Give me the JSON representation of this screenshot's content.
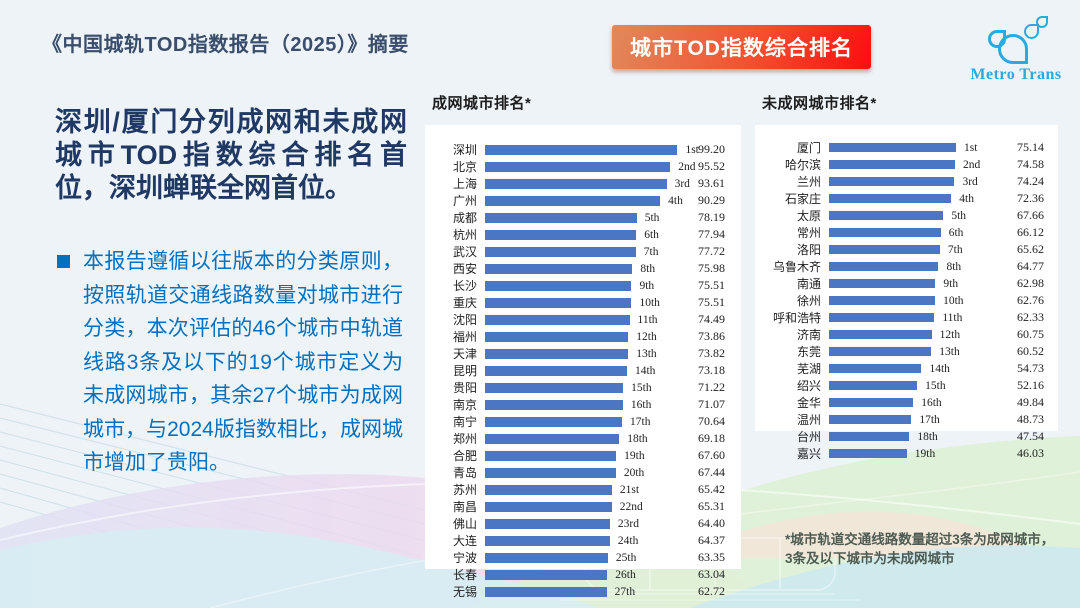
{
  "header": {
    "title": "《中国城轨TOD指数报告（2025）》摘要",
    "badge_label": "城市TOD指数综合排名",
    "logo_text": "Metro Trans"
  },
  "summary": {
    "headline": "深圳/厦门分列成网和未成网城市TOD指数综合排名首位，深圳蝉联全网首位。",
    "bullet_text": "本报告遵循以往版本的分类原则，按照轨道交通线路数量对城市进行分类，本次评估的46个城市中轨道线路3条及以下的19个城市定义为未成网城市，其余27个城市为成网城市，与2024版指数相比，成网城市增加了贵阳。"
  },
  "footnote": {
    "line1": "*城市轨道交通线路数量超过3条为成网城市，",
    "line2": "3条及以下城市为未成网城市"
  },
  "colors": {
    "bar": "#4a76c4",
    "headline": "#1f3864",
    "bullet_text": "#0070c0",
    "header_title": "#3a4d6b",
    "badge_gradient_start": "#e08a5c",
    "badge_gradient_end": "#fb0e0e",
    "logo": "#29abe2"
  },
  "chart_data": [
    {
      "type": "bar",
      "orientation": "horizontal",
      "title": "成网城市排名*",
      "xlabel": "",
      "ylabel": "",
      "xlim": [
        0,
        100
      ],
      "grid": false,
      "legend": null,
      "categories": [
        "深圳",
        "北京",
        "上海",
        "广州",
        "成都",
        "杭州",
        "武汉",
        "西安",
        "长沙",
        "重庆",
        "沈阳",
        "福州",
        "天津",
        "昆明",
        "贵阳",
        "南京",
        "南宁",
        "郑州",
        "合肥",
        "青岛",
        "苏州",
        "南昌",
        "佛山",
        "大连",
        "宁波",
        "长春",
        "无锡"
      ],
      "values": [
        99.2,
        95.52,
        93.61,
        90.29,
        78.19,
        77.94,
        77.72,
        75.98,
        75.51,
        75.51,
        74.49,
        73.86,
        73.82,
        73.18,
        71.22,
        71.07,
        70.64,
        69.18,
        67.6,
        67.44,
        65.42,
        65.31,
        64.4,
        64.37,
        63.35,
        63.04,
        62.72
      ],
      "value_labels": [
        "99.20",
        "95.52",
        "93.61",
        "90.29",
        "78.19",
        "77.94",
        "77.72",
        "75.98",
        "75.51",
        "75.51",
        "74.49",
        "73.86",
        "73.82",
        "73.18",
        "71.22",
        "71.07",
        "70.64",
        "69.18",
        "67.60",
        "67.44",
        "65.42",
        "65.31",
        "64.40",
        "64.37",
        "63.35",
        "63.04",
        "62.72"
      ],
      "rank_labels": [
        "1st",
        "2nd",
        "3rd",
        "4th",
        "5th",
        "6th",
        "7th",
        "8th",
        "9th",
        "10th",
        "11th",
        "12th",
        "13th",
        "14th",
        "15th",
        "16th",
        "17th",
        "18th",
        "19th",
        "20th",
        "21st",
        "22nd",
        "23rd",
        "24th",
        "25th",
        "26th",
        "27th"
      ]
    },
    {
      "type": "bar",
      "orientation": "horizontal",
      "title": "未成网城市排名*",
      "xlabel": "",
      "ylabel": "",
      "xlim": [
        0,
        100
      ],
      "grid": false,
      "legend": null,
      "categories": [
        "厦门",
        "哈尔滨",
        "兰州",
        "石家庄",
        "太原",
        "常州",
        "洛阳",
        "乌鲁木齐",
        "南通",
        "徐州",
        "呼和浩特",
        "济南",
        "东莞",
        "芜湖",
        "绍兴",
        "金华",
        "温州",
        "台州",
        "嘉兴"
      ],
      "values": [
        75.14,
        74.58,
        74.24,
        72.36,
        67.66,
        66.12,
        65.62,
        64.77,
        62.98,
        62.76,
        62.33,
        60.75,
        60.52,
        54.73,
        52.16,
        49.84,
        48.73,
        47.54,
        46.03
      ],
      "value_labels": [
        "75.14",
        "74.58",
        "74.24",
        "72.36",
        "67.66",
        "66.12",
        "65.62",
        "64.77",
        "62.98",
        "62.76",
        "62.33",
        "60.75",
        "60.52",
        "54.73",
        "52.16",
        "49.84",
        "48.73",
        "47.54",
        "46.03"
      ],
      "rank_labels": [
        "1st",
        "2nd",
        "3rd",
        "4th",
        "5th",
        "6th",
        "7th",
        "8th",
        "9th",
        "10th",
        "11th",
        "12th",
        "13th",
        "14th",
        "15th",
        "16th",
        "17th",
        "18th",
        "19th"
      ]
    }
  ]
}
